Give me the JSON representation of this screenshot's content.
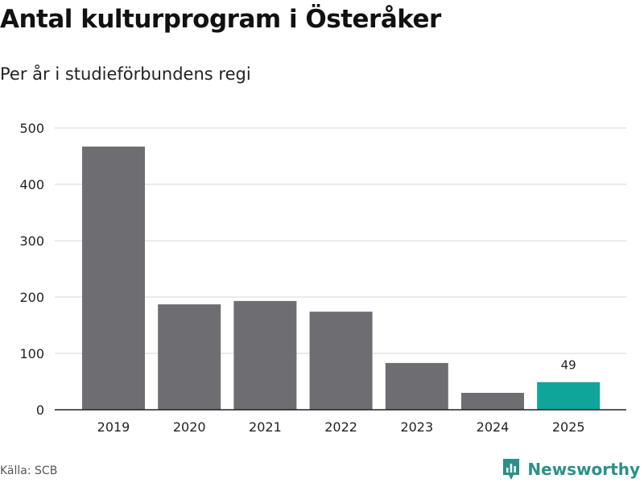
{
  "header": {
    "title": "Antal kulturprogram i Österåker",
    "subtitle": "Per år i studieförbundens regi"
  },
  "footer": {
    "source": "Källa: SCB",
    "brand": "Newsworthy"
  },
  "colors": {
    "bar": "#6d6d72",
    "highlight": "#10a59a",
    "grid": "#dddddd",
    "axis": "#222222",
    "brand": "#2c8f8a"
  },
  "chart_data": {
    "type": "bar",
    "categories": [
      "2019",
      "2020",
      "2021",
      "2022",
      "2023",
      "2024",
      "2025"
    ],
    "values": [
      467,
      187,
      193,
      174,
      83,
      30,
      49
    ],
    "highlight_index": 6,
    "data_labels": [
      {
        "index": 6,
        "text": "49"
      }
    ],
    "ylim": [
      0,
      500
    ],
    "yticks": [
      0,
      100,
      200,
      300,
      400,
      500
    ],
    "grid": true,
    "legend": "none"
  }
}
